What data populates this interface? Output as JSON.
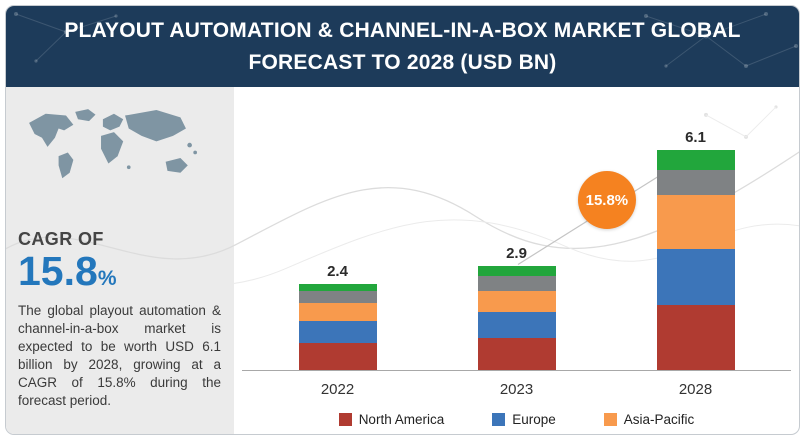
{
  "header": {
    "title": "PLAYOUT AUTOMATION & CHANNEL-IN-A-BOX MARKET GLOBAL FORECAST TO 2028 (USD BN)"
  },
  "sidebar": {
    "cagr_label": "CAGR OF",
    "cagr_value": "15.8",
    "cagr_unit": "%",
    "description": "The global playout automation & channel-in-a-box market is expected to be worth USD 6.1 billion by 2028, growing at a CAGR of 15.8% during the forecast period."
  },
  "chart_data": {
    "type": "bar",
    "stacked": true,
    "title": "PLAYOUT AUTOMATION & CHANNEL-IN-A-BOX MARKET GLOBAL FORECAST TO 2028 (USD BN)",
    "categories": [
      "2022",
      "2023",
      "2028"
    ],
    "totals": [
      2.4,
      2.9,
      6.1
    ],
    "series": [
      {
        "name": "North America",
        "color": "#b03b31",
        "values": [
          0.75,
          0.9,
          1.8
        ]
      },
      {
        "name": "Europe",
        "color": "#3c75b9",
        "values": [
          0.6,
          0.7,
          1.55
        ]
      },
      {
        "name": "Asia-Pacific",
        "color": "#f89a4d",
        "values": [
          0.5,
          0.6,
          1.5
        ]
      },
      {
        "name": "(gray segment)",
        "color": "#7f8284",
        "values": [
          0.35,
          0.4,
          0.7
        ]
      },
      {
        "name": "(green segment)",
        "color": "#22a63c",
        "values": [
          0.2,
          0.3,
          0.55
        ]
      }
    ],
    "legend": [
      "North America",
      "Europe",
      "Asia-Pacific"
    ],
    "annotation_badge": "15.8%",
    "ylim": [
      0,
      6.5
    ],
    "grid": false,
    "legend_position": "bottom"
  },
  "colors": {
    "header_bg": "#1d3b5a",
    "sidebar_bg": "#ebebeb",
    "accent_blue": "#2377bc",
    "badge_orange": "#f58220"
  }
}
